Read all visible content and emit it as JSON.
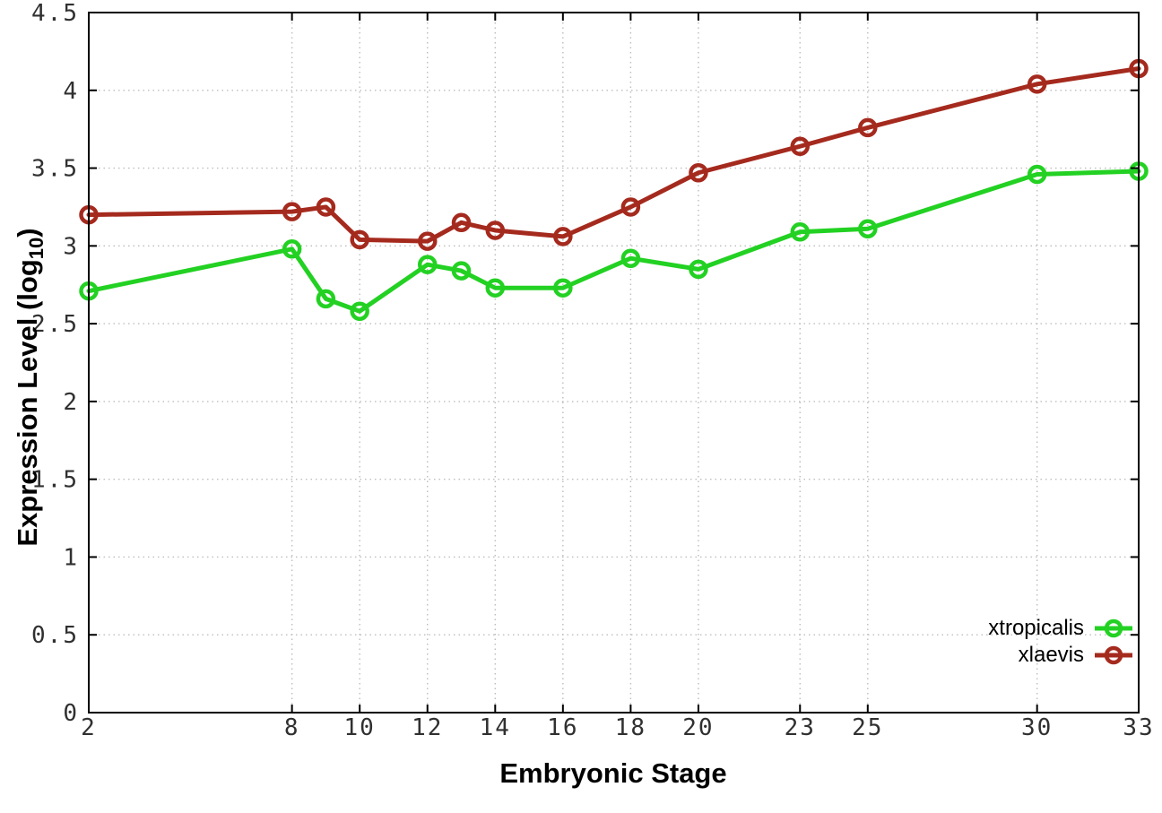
{
  "chart_data": {
    "type": "line",
    "title": "",
    "xlabel": "Embryonic Stage",
    "ylabel": "Expression Level (log10)",
    "ylabel_parts": {
      "main": "Expression Level (log",
      "sub": "10",
      "end": ")"
    },
    "x": [
      2,
      8,
      9,
      10,
      12,
      13,
      14,
      16,
      18,
      20,
      23,
      25,
      30,
      33
    ],
    "x_ticks": [
      2,
      8,
      10,
      12,
      14,
      16,
      18,
      20,
      23,
      25,
      30,
      33
    ],
    "y_ticks": [
      0,
      0.5,
      1,
      1.5,
      2,
      2.5,
      3,
      3.5,
      4,
      4.5
    ],
    "xlim": [
      2,
      33
    ],
    "ylim": [
      0,
      4.5
    ],
    "grid": true,
    "legend_position": "bottom-right",
    "series": [
      {
        "name": "xtropicalis",
        "color": "#23d123",
        "values": [
          2.71,
          2.98,
          2.66,
          2.58,
          2.88,
          2.84,
          2.73,
          2.73,
          2.92,
          2.85,
          3.09,
          3.11,
          3.46,
          3.48
        ]
      },
      {
        "name": "xlaevis",
        "color": "#a52a1e",
        "values": [
          3.2,
          3.22,
          3.25,
          3.04,
          3.03,
          3.15,
          3.1,
          3.06,
          3.25,
          3.47,
          3.64,
          3.76,
          4.04,
          4.14
        ]
      }
    ],
    "colors": {
      "background": "#ffffff",
      "grid": "#bdbdbd",
      "axis": "#000000",
      "tick_text": "#303030"
    }
  }
}
